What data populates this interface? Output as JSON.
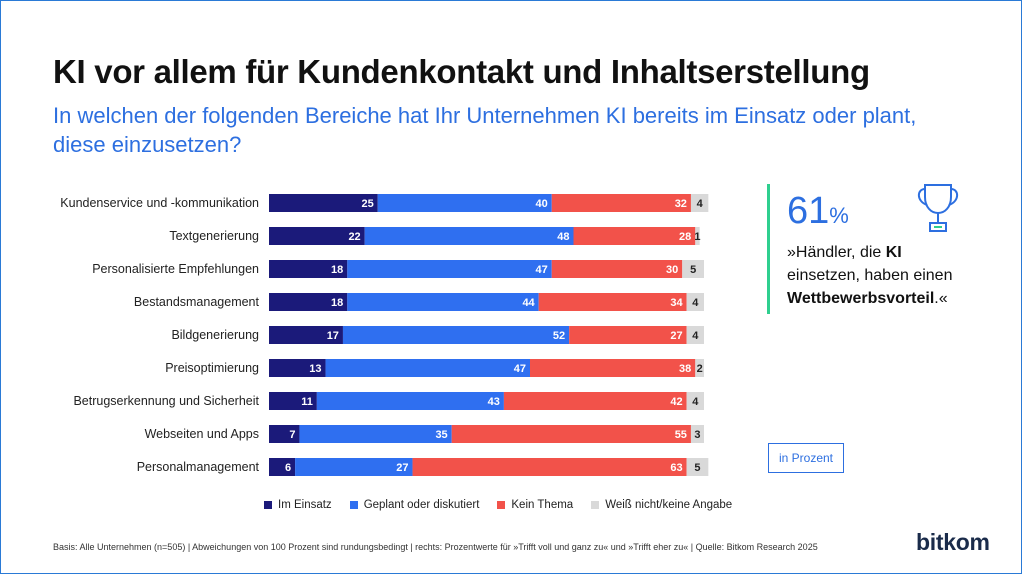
{
  "title": "KI vor allem für Kundenkontakt und Inhaltserstellung",
  "subtitle": "In welchen der folgenden Bereiche hat Ihr Unternehmen KI bereits im Einsatz oder plant, diese einzusetzen?",
  "chart_data": {
    "type": "bar",
    "orientation": "horizontal",
    "stacked": true,
    "title": "KI vor allem für Kundenkontakt und Inhaltserstellung",
    "unit": "in Prozent",
    "categories": [
      "Kundenservice und -kommunikation",
      "Textgenerierung",
      "Personalisierte Empfehlungen",
      "Bestandsmanagement",
      "Bildgenerierung",
      "Preisoptimierung",
      "Betrugserkennung und Sicherheit",
      "Webseiten und Apps",
      "Personalmanagement"
    ],
    "series": [
      {
        "name": "Im Einsatz",
        "color": "#1b1a7a",
        "values": [
          25,
          22,
          18,
          18,
          17,
          13,
          11,
          7,
          6
        ]
      },
      {
        "name": "Geplant oder diskutiert",
        "color": "#2f6ff0",
        "values": [
          40,
          48,
          47,
          44,
          52,
          47,
          43,
          35,
          27
        ]
      },
      {
        "name": "Kein Thema",
        "color": "#f2524a",
        "values": [
          32,
          28,
          30,
          34,
          27,
          38,
          42,
          55,
          63
        ]
      },
      {
        "name": "Weiß nicht/keine Angabe",
        "color": "#d9d9d9",
        "values": [
          4,
          1,
          5,
          4,
          4,
          2,
          4,
          3,
          5
        ]
      }
    ],
    "legend_position": "bottom"
  },
  "callout": {
    "value": "61",
    "unit": "%",
    "quote_prefix": "»Händler, die ",
    "quote_bold1": "KI",
    "quote_middle": " einsetzen, haben einen ",
    "quote_bold2": "Wettbewerbsvorteil",
    "quote_suffix": ".«",
    "accent_color": "#2fcf8f"
  },
  "unit_label": "in Prozent",
  "footnote": "Basis: Alle Unternehmen (n=505) | Abweichungen von 100 Prozent sind rundungsbedingt | rechts: Prozentwerte für »Trifft voll und ganz zu« und »Trifft eher zu« | Quelle: Bitkom Research 2025",
  "logo": "bitkom",
  "icons": {
    "trophy": "trophy-icon"
  }
}
